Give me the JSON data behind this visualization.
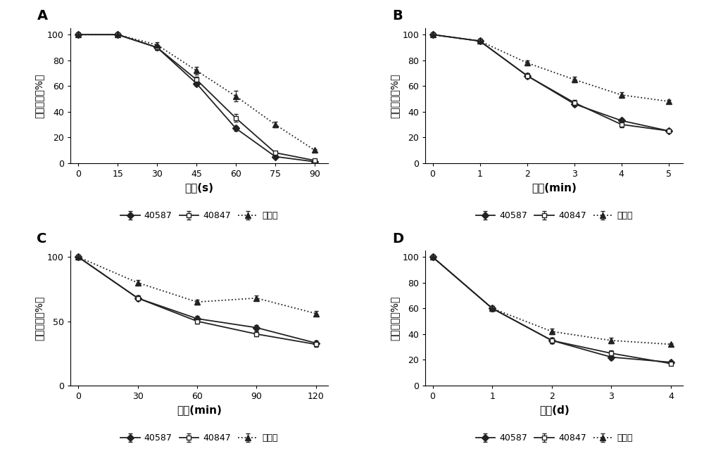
{
  "A": {
    "xlabel": "时间(s)",
    "xticks": [
      0,
      15,
      30,
      45,
      60,
      75,
      90
    ],
    "xlim": [
      -3,
      95
    ],
    "ylim": [
      0,
      105
    ],
    "yticks": [
      0,
      20,
      40,
      60,
      80,
      100
    ],
    "series": {
      "40587": {
        "x": [
          0,
          15,
          30,
          45,
          60,
          75,
          90
        ],
        "y": [
          100,
          100,
          90,
          62,
          27,
          5,
          1
        ],
        "yerr": [
          0,
          0,
          2,
          2,
          2,
          1,
          0.5
        ]
      },
      "40847": {
        "x": [
          0,
          15,
          30,
          45,
          60,
          75,
          90
        ],
        "y": [
          100,
          100,
          90,
          65,
          35,
          8,
          2
        ],
        "yerr": [
          0,
          0,
          2,
          2,
          3,
          1,
          0.5
        ]
      },
      "实验组": {
        "x": [
          0,
          15,
          30,
          45,
          60,
          75,
          90
        ],
        "y": [
          100,
          100,
          92,
          72,
          52,
          30,
          10
        ],
        "yerr": [
          0,
          0,
          2,
          3,
          4,
          2,
          1
        ]
      }
    }
  },
  "B": {
    "xlabel": "时间(min)",
    "xticks": [
      0,
      1,
      2,
      3,
      4,
      5
    ],
    "xlim": [
      -0.15,
      5.3
    ],
    "ylim": [
      0,
      105
    ],
    "yticks": [
      0,
      20,
      40,
      60,
      80,
      100
    ],
    "series": {
      "40587": {
        "x": [
          0,
          1,
          2,
          3,
          4,
          5
        ],
        "y": [
          100,
          95,
          68,
          46,
          33,
          25
        ],
        "yerr": [
          0,
          1,
          2,
          2,
          2,
          1
        ]
      },
      "40847": {
        "x": [
          0,
          1,
          2,
          3,
          4,
          5
        ],
        "y": [
          100,
          95,
          68,
          47,
          30,
          25
        ],
        "yerr": [
          0,
          1,
          2,
          2,
          2,
          1
        ]
      },
      "实验组": {
        "x": [
          0,
          1,
          2,
          3,
          4,
          5
        ],
        "y": [
          100,
          95,
          78,
          65,
          53,
          48
        ],
        "yerr": [
          0,
          1,
          2,
          2,
          2,
          1
        ]
      }
    }
  },
  "C": {
    "xlabel": "时间(min)",
    "xticks": [
      0,
      30,
      60,
      90,
      120
    ],
    "xlim": [
      -4,
      126
    ],
    "ylim": [
      0,
      105
    ],
    "yticks": [
      0,
      50,
      100
    ],
    "series": {
      "40587": {
        "x": [
          0,
          30,
          60,
          90,
          120
        ],
        "y": [
          100,
          68,
          52,
          45,
          33
        ],
        "yerr": [
          0,
          2,
          2,
          2,
          2
        ]
      },
      "40847": {
        "x": [
          0,
          30,
          60,
          90,
          120
        ],
        "y": [
          100,
          68,
          50,
          40,
          32
        ],
        "yerr": [
          0,
          2,
          2,
          2,
          2
        ]
      },
      "实验组": {
        "x": [
          0,
          30,
          60,
          90,
          120
        ],
        "y": [
          100,
          80,
          65,
          68,
          56
        ],
        "yerr": [
          0,
          2,
          2,
          2,
          2
        ]
      }
    }
  },
  "D": {
    "xlabel": "时间(d)",
    "xticks": [
      0,
      1,
      2,
      3,
      4
    ],
    "xlim": [
      -0.12,
      4.2
    ],
    "ylim": [
      0,
      105
    ],
    "yticks": [
      0,
      20,
      40,
      60,
      80,
      100
    ],
    "series": {
      "40587": {
        "x": [
          0,
          1,
          2,
          3,
          4
        ],
        "y": [
          100,
          60,
          35,
          22,
          18
        ],
        "yerr": [
          0,
          2,
          2,
          2,
          1
        ]
      },
      "40847": {
        "x": [
          0,
          1,
          2,
          3,
          4
        ],
        "y": [
          100,
          60,
          35,
          25,
          17
        ],
        "yerr": [
          0,
          2,
          2,
          2,
          1
        ]
      },
      "实验组": {
        "x": [
          0,
          1,
          2,
          3,
          4
        ],
        "y": [
          100,
          60,
          42,
          35,
          32
        ],
        "yerr": [
          0,
          2,
          2,
          2,
          1
        ]
      }
    }
  },
  "ylabel": "相对酶活（%）",
  "line_styles": {
    "40587": {
      "color": "#222222",
      "linestyle": "-",
      "marker": "D",
      "markersize": 5,
      "markerfacecolor": "#222222"
    },
    "40847": {
      "color": "#222222",
      "linestyle": "-",
      "marker": "s",
      "markersize": 5,
      "markerfacecolor": "white"
    },
    "实验组": {
      "color": "#222222",
      "linestyle": ":",
      "marker": "^",
      "markersize": 6,
      "markerfacecolor": "#222222"
    }
  },
  "legend_order": [
    "40587",
    "40847",
    "实验组"
  ],
  "panel_labels": [
    "A",
    "B",
    "C",
    "D"
  ],
  "bg_color": "#ffffff"
}
